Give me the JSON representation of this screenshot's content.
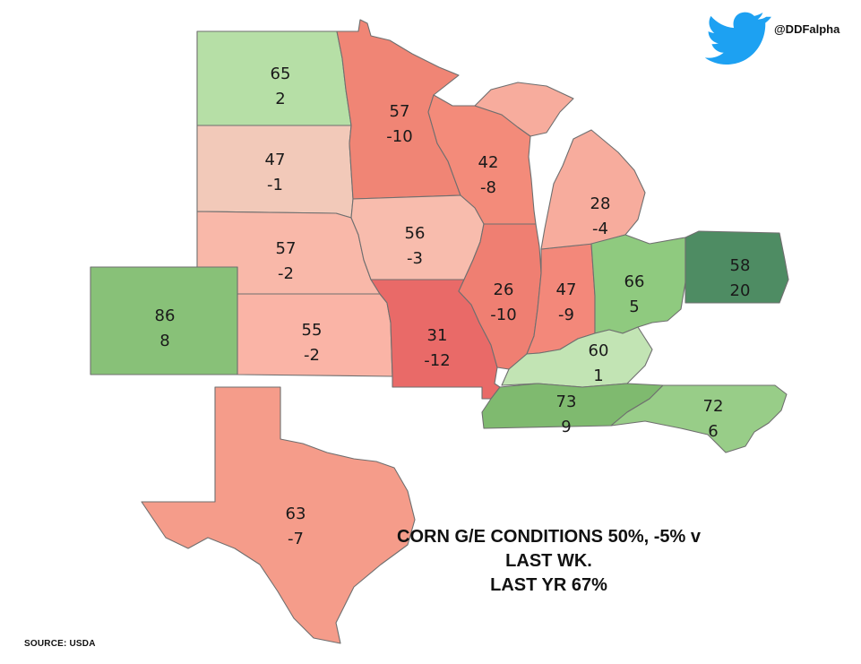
{
  "social": {
    "icon": "twitter-bird-icon",
    "handle": "@DDFalpha"
  },
  "headline": {
    "line1": "CORN G/E CONDITIONS 50%, -5% v LAST WK.",
    "line2": "LAST YR 67%"
  },
  "source": "SOURCE: USDA",
  "map_data": {
    "states": [
      {
        "id": "ND",
        "pct": "65",
        "chg": "2",
        "color": "#b6dfa6"
      },
      {
        "id": "SD",
        "pct": "47",
        "chg": "-1",
        "color": "#f2c9b9"
      },
      {
        "id": "NE",
        "pct": "57",
        "chg": "-2",
        "color": "#f9b8a9"
      },
      {
        "id": "KS",
        "pct": "55",
        "chg": "-2",
        "color": "#fab4a6"
      },
      {
        "id": "MN",
        "pct": "57",
        "chg": "-10",
        "color": "#f08575"
      },
      {
        "id": "IA",
        "pct": "56",
        "chg": "-3",
        "color": "#f8bcad"
      },
      {
        "id": "MO",
        "pct": "31",
        "chg": "-12",
        "color": "#e96a68"
      },
      {
        "id": "WI",
        "pct": "42",
        "chg": "-8",
        "color": "#f38b7a"
      },
      {
        "id": "IL",
        "pct": "26",
        "chg": "-10",
        "color": "#ef7f72"
      },
      {
        "id": "IN",
        "pct": "47",
        "chg": "-9",
        "color": "#f3887a"
      },
      {
        "id": "MI",
        "pct": "28",
        "chg": "-4",
        "color": "#f7ac9d"
      },
      {
        "id": "OH",
        "pct": "66",
        "chg": "5",
        "color": "#8fca7f"
      },
      {
        "id": "PA",
        "pct": "58",
        "chg": "20",
        "color": "#4e8c63"
      },
      {
        "id": "KY",
        "pct": "60",
        "chg": "1",
        "color": "#c2e4b4"
      },
      {
        "id": "TN",
        "pct": "73",
        "chg": "9",
        "color": "#7fba6f"
      },
      {
        "id": "NC",
        "pct": "72",
        "chg": "6",
        "color": "#98cd88"
      },
      {
        "id": "CO",
        "pct": "86",
        "chg": "8",
        "color": "#88c178"
      },
      {
        "id": "TX",
        "pct": "63",
        "chg": "-7",
        "color": "#f59c8a"
      }
    ]
  }
}
